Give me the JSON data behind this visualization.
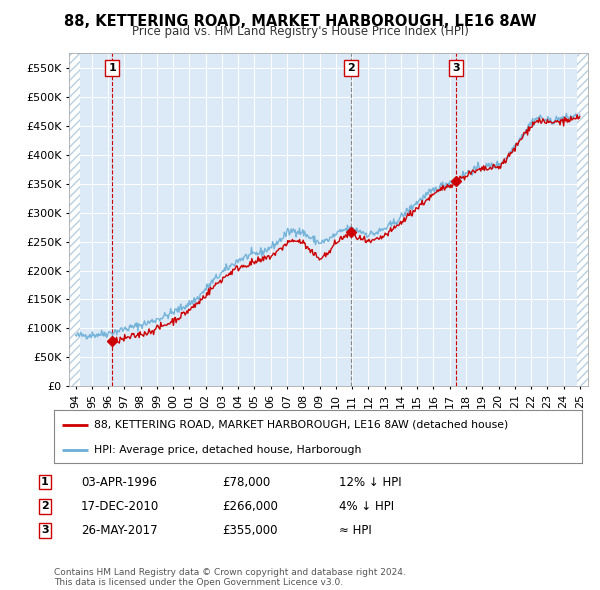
{
  "title": "88, KETTERING ROAD, MARKET HARBOROUGH, LE16 8AW",
  "subtitle": "Price paid vs. HM Land Registry's House Price Index (HPI)",
  "yticks": [
    0,
    50000,
    100000,
    150000,
    200000,
    250000,
    300000,
    350000,
    400000,
    450000,
    500000,
    550000
  ],
  "ylim": [
    0,
    575000
  ],
  "xlim_start": 1993.6,
  "xlim_end": 2025.5,
  "xticks": [
    1994,
    1995,
    1996,
    1997,
    1998,
    1999,
    2000,
    2001,
    2002,
    2003,
    2004,
    2005,
    2006,
    2007,
    2008,
    2009,
    2010,
    2011,
    2012,
    2013,
    2014,
    2015,
    2016,
    2017,
    2018,
    2019,
    2020,
    2021,
    2022,
    2023,
    2024,
    2025
  ],
  "plot_bg": "#dce9f7",
  "grid_color": "#ffffff",
  "hpi_color": "#6baed6",
  "price_color": "#cc0000",
  "sale1_date": 1996.25,
  "sale1_price": 78000,
  "sale2_date": 2010.96,
  "sale2_price": 266000,
  "sale3_date": 2017.4,
  "sale3_price": 355000,
  "vline1_color": "#cc0000",
  "vline2_color": "#888888",
  "vline3_color": "#cc0000",
  "legend_label_price": "88, KETTERING ROAD, MARKET HARBOROUGH, LE16 8AW (detached house)",
  "legend_label_hpi": "HPI: Average price, detached house, Harborough",
  "table_entries": [
    {
      "num": "1",
      "date": "03-APR-1996",
      "price": "£78,000",
      "vs": "12% ↓ HPI"
    },
    {
      "num": "2",
      "date": "17-DEC-2010",
      "price": "£266,000",
      "vs": "4% ↓ HPI"
    },
    {
      "num": "3",
      "date": "26-MAY-2017",
      "price": "£355,000",
      "vs": "≈ HPI"
    }
  ],
  "footer": "Contains HM Land Registry data © Crown copyright and database right 2024.\nThis data is licensed under the Open Government Licence v3.0."
}
